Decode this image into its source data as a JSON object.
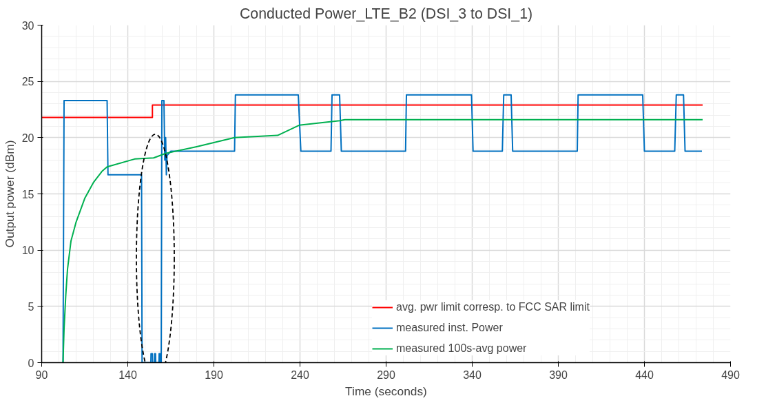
{
  "chart_data": {
    "type": "line",
    "title": "Conducted Power_LTE_B2 (DSI_3 to DSI_1)",
    "xlabel": "Time (seconds)",
    "ylabel": "Output power (dBm)",
    "xlim": [
      90,
      490
    ],
    "xticks": [
      90,
      140,
      190,
      240,
      290,
      340,
      390,
      440,
      490
    ],
    "ylim": [
      0,
      30
    ],
    "yticks": [
      0,
      5,
      10,
      15,
      20,
      25,
      30
    ],
    "grid": true,
    "legend": "bottom right",
    "marker": "none",
    "line_style": "solid",
    "series": [
      {
        "name": "avg. pwr limit corresp. to FCC SAR limit",
        "color": "#ff0000",
        "type": "step",
        "x": [
          90,
          154.3,
          473.8
        ],
        "values": [
          21.8,
          22.9,
          22.9
        ]
      },
      {
        "name": "measured inst. Power",
        "color": "#0070c0",
        "x": [
          102.4,
          103,
          128,
          128.5,
          148,
          148.3,
          153.4,
          153.5,
          154.3,
          154.4,
          155.5,
          155.6,
          156.1,
          156.2,
          158.1,
          158.2,
          158.8,
          158.9,
          159.4,
          159.8,
          161,
          161.5,
          162,
          162.4,
          162.8,
          165,
          202,
          202.5,
          239,
          240.5,
          258,
          258.6,
          263,
          264,
          301.3,
          301.8,
          339.6,
          340.5,
          357.5,
          358.3,
          362.6,
          363.5,
          401,
          401.5,
          439,
          440,
          457.6,
          458.5,
          462.7,
          463.6,
          473.4
        ],
        "values": [
          0,
          23.3,
          23.3,
          16.7,
          16.7,
          0,
          0,
          0.8,
          0.8,
          0,
          0,
          0.8,
          0.8,
          0,
          0,
          0.8,
          0.8,
          0,
          0,
          23.3,
          23.3,
          18,
          20,
          16.7,
          18.4,
          18.8,
          18.8,
          23.8,
          23.8,
          18.8,
          18.8,
          23.8,
          23.8,
          18.8,
          18.8,
          23.8,
          23.8,
          18.8,
          18.8,
          23.8,
          23.8,
          18.8,
          18.8,
          23.8,
          23.8,
          18.8,
          18.8,
          23.8,
          23.8,
          18.8,
          18.8
        ]
      },
      {
        "name": "measured 100s-avg power",
        "color": "#00b050",
        "x": [
          102.4,
          103,
          104,
          105,
          107,
          110,
          115,
          120,
          125,
          128,
          144,
          155,
          162,
          180,
          202,
          227,
          239.5,
          263,
          266,
          473.8
        ],
        "values": [
          0,
          3,
          6,
          8.3,
          10.8,
          12.5,
          14.6,
          16,
          17,
          17.4,
          18.1,
          18.2,
          18.6,
          19.2,
          20,
          20.2,
          21.1,
          21.5,
          21.6,
          21.6
        ]
      }
    ]
  }
}
